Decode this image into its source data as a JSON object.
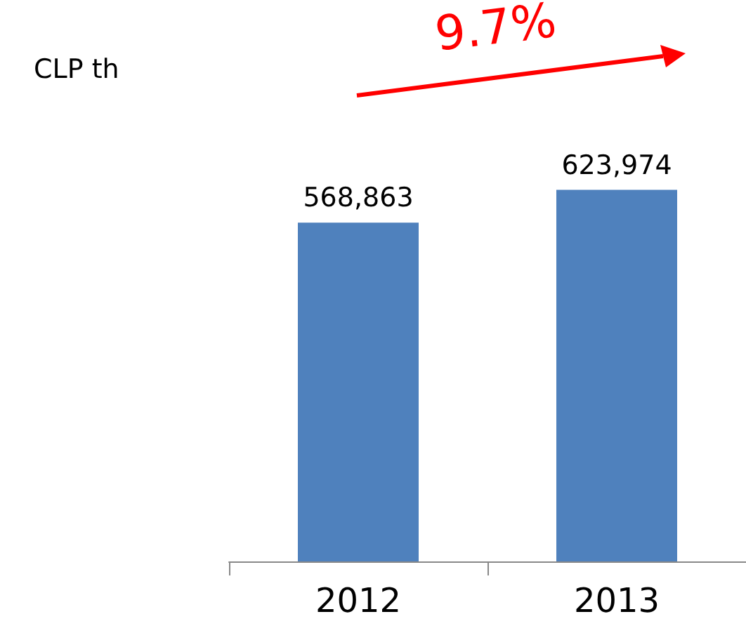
{
  "chart_data": {
    "type": "bar",
    "categories": [
      "2012",
      "2013"
    ],
    "values": [
      568863,
      623974
    ],
    "value_labels": [
      "568,863",
      "623,974"
    ],
    "color": "#4f81bd",
    "annotations": [
      "CLP th",
      "9.7%"
    ]
  }
}
